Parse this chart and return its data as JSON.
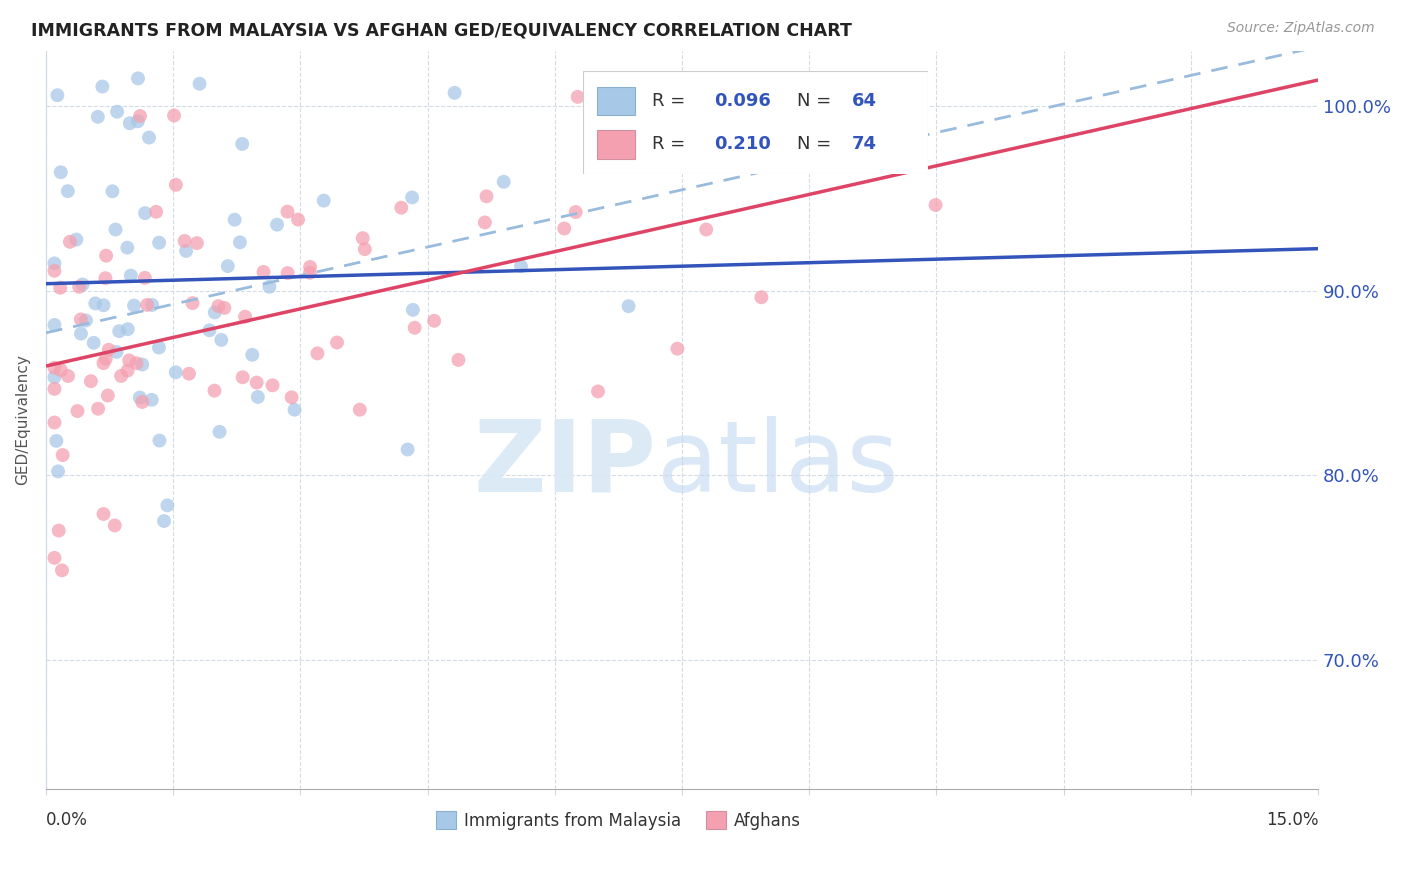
{
  "title": "IMMIGRANTS FROM MALAYSIA VS AFGHAN GED/EQUIVALENCY CORRELATION CHART",
  "source": "Source: ZipAtlas.com",
  "ylabel": "GED/Equivalency",
  "ytick_values": [
    0.7,
    0.8,
    0.9,
    1.0
  ],
  "xlim": [
    0.0,
    0.15
  ],
  "ylim": [
    0.63,
    1.03
  ],
  "legend_label1": "Immigrants from Malaysia",
  "legend_label2": "Afghans",
  "R1": "0.096",
  "N1": "64",
  "R2": "0.210",
  "N2": "74",
  "color_blue": "#a8c8e8",
  "color_pink": "#f4a0b0",
  "trendline_blue": "#3355bb",
  "trendline_pink": "#dd4466",
  "trendline_dashed": "#99bbdd",
  "text_blue": "#3355bb",
  "grid_color": "#d0d8e4",
  "watermark_zip_color": "#d8e8f4",
  "watermark_atlas_color": "#c0d8f0"
}
